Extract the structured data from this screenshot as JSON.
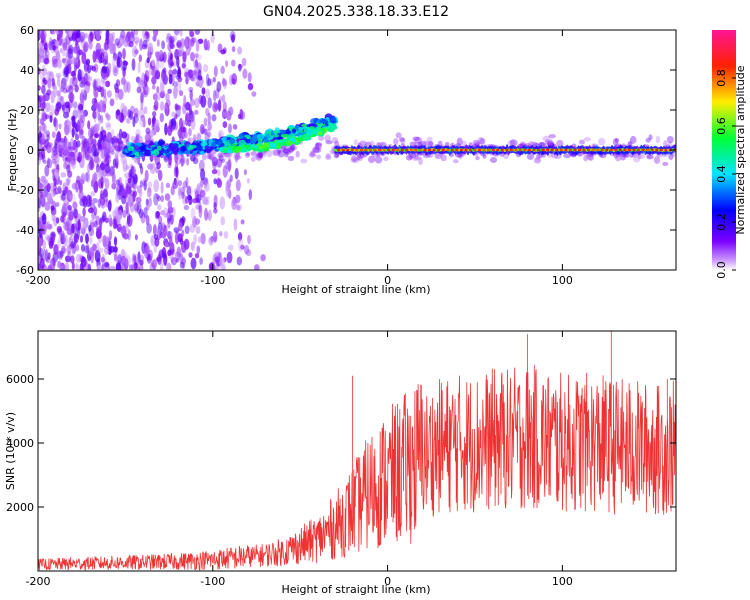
{
  "title": "GN04.2025.338.18.33.E12",
  "colors": {
    "snr_line": "#ee3333",
    "axis": "#000000",
    "background": "#ffffff"
  },
  "chart_data": [
    {
      "type": "heatmap",
      "title": "GN04.2025.338.18.33.E12",
      "xlabel": "Height of straight line (km)",
      "ylabel": "Frequency (Hz)",
      "xlim": [
        -200,
        165
      ],
      "ylim": [
        -60,
        60
      ],
      "xticks": [
        -200,
        -100,
        0,
        100
      ],
      "yticks": [
        60,
        40,
        20,
        0,
        -20,
        -40,
        -60
      ],
      "colorbar": {
        "label": "Normalized spectral amplitude",
        "range": [
          0.0,
          1.0
        ],
        "ticks": [
          0.0,
          0.2,
          0.4,
          0.6,
          0.8
        ],
        "colormap": "rainbow (purple-blue-cyan-green-yellow-red-magenta)"
      },
      "features": [
        {
          "label": "diffuse noise",
          "x_range": [
            -200,
            -70
          ],
          "freq_range": [
            -60,
            60
          ],
          "amplitude": 0.15
        },
        {
          "label": "trail band",
          "x_range": [
            -150,
            -30
          ],
          "freq_center_range": [
            0,
            15
          ],
          "amplitude": 0.35
        },
        {
          "label": "head echo line",
          "x_range": [
            -30,
            165
          ],
          "freq": 0,
          "amplitude": 0.9
        }
      ]
    },
    {
      "type": "line",
      "xlabel": "Height of straight line (km)",
      "ylabel": "SNR (10 * v/v)",
      "xlim": [
        -200,
        165
      ],
      "ylim": [
        0,
        7500
      ],
      "xticks": [
        -200,
        -100,
        0,
        100
      ],
      "yticks": [
        2000,
        4000,
        6000
      ],
      "series": [
        {
          "name": "SNR",
          "x": [
            -200,
            -180,
            -160,
            -140,
            -120,
            -100,
            -90,
            -80,
            -70,
            -60,
            -50,
            -40,
            -30,
            -20,
            -10,
            0,
            10,
            20,
            30,
            40,
            50,
            60,
            70,
            80,
            90,
            100,
            110,
            120,
            130,
            140,
            150,
            160,
            165
          ],
          "y": [
            200,
            230,
            250,
            270,
            300,
            350,
            400,
            450,
            500,
            600,
            800,
            1000,
            1400,
            1900,
            2500,
            2900,
            3200,
            3600,
            3900,
            4000,
            4000,
            4100,
            4100,
            4200,
            4100,
            4000,
            4000,
            4000,
            3900,
            3900,
            3800,
            3800,
            3900
          ]
        }
      ],
      "peaks": [
        {
          "x": -20,
          "y": 6100
        },
        {
          "x": 80,
          "y": 7400
        },
        {
          "x": 128,
          "y": 7500
        },
        {
          "x": 160,
          "y": 6000
        }
      ]
    }
  ]
}
